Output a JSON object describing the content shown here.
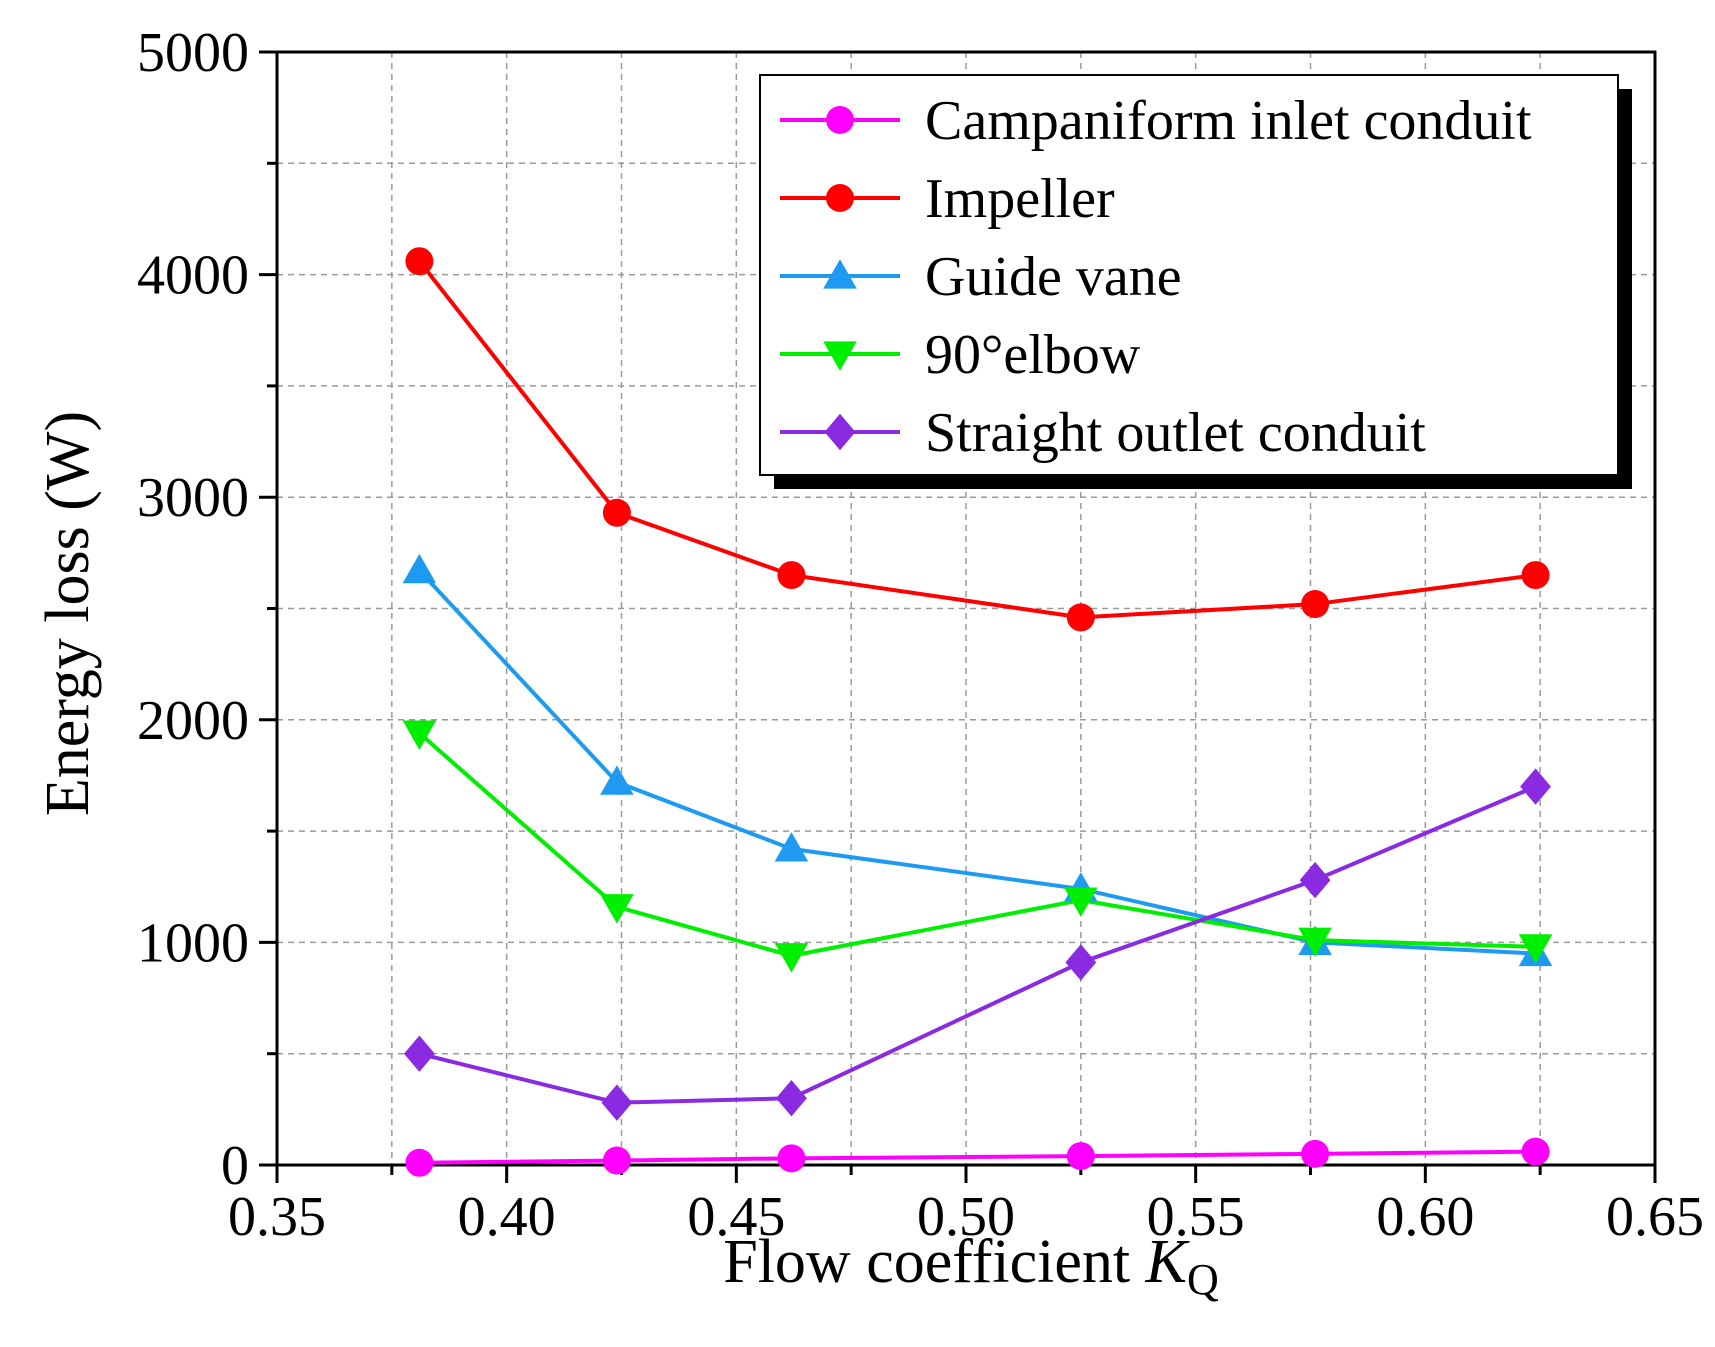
{
  "chart_data": {
    "type": "line",
    "xlabel": "Flow coefficient ",
    "xlabel_var": "K",
    "xlabel_sub": "Q",
    "ylabel": "Energy loss (W)",
    "xlim": [
      0.35,
      0.65
    ],
    "ylim": [
      0,
      5000
    ],
    "x_ticks": [
      "0.35",
      "0.40",
      "0.45",
      "0.50",
      "0.55",
      "0.60",
      "0.65"
    ],
    "y_ticks": [
      "0",
      "1000",
      "2000",
      "3000",
      "4000",
      "5000"
    ],
    "grid": true,
    "legend_position": "top-right",
    "x": [
      0.381,
      0.424,
      0.462,
      0.525,
      0.576,
      0.624
    ],
    "series": [
      {
        "name": "Campaniform inlet conduit",
        "color": "#ff00ff",
        "marker": "circle",
        "values": [
          10,
          20,
          30,
          40,
          50,
          60
        ]
      },
      {
        "name": "Impeller",
        "color": "#ff0000",
        "marker": "circle",
        "values": [
          4060,
          2930,
          2650,
          2460,
          2520,
          2650
        ]
      },
      {
        "name": "Guide vane",
        "color": "#1e9bf0",
        "marker": "triangle-up",
        "values": [
          2670,
          1720,
          1420,
          1240,
          1000,
          950
        ]
      },
      {
        "name": "90°elbow",
        "color": "#00ee00",
        "marker": "triangle-down",
        "values": [
          1940,
          1160,
          940,
          1190,
          1010,
          980
        ]
      },
      {
        "name": "Straight outlet conduit",
        "color": "#8a2be2",
        "marker": "diamond",
        "values": [
          500,
          280,
          300,
          910,
          1280,
          1700
        ]
      }
    ]
  }
}
